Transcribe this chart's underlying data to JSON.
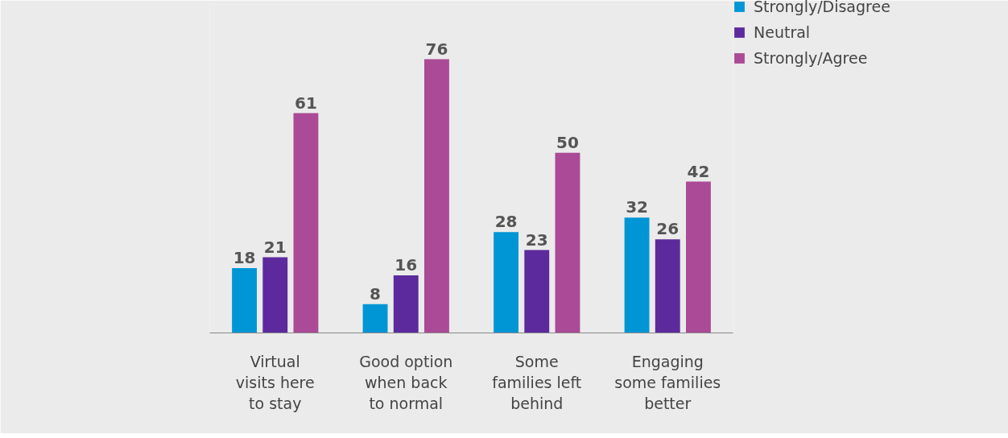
{
  "chart_data": {
    "type": "bar",
    "categories": [
      "Virtual\nvisits here\nto stay",
      "Good option\nwhen back\nto normal",
      "Some\nfamilies left\nbehind",
      "Engaging\nsome families\nbetter"
    ],
    "series": [
      {
        "name": "Strongly/Disagree",
        "color": "#0096d6",
        "values": [
          18,
          8,
          28,
          32
        ]
      },
      {
        "name": "Neutral",
        "color": "#5c2a9d",
        "values": [
          21,
          16,
          23,
          26
        ]
      },
      {
        "name": "Strongly/Agree",
        "color": "#ab4a96",
        "values": [
          61,
          76,
          50,
          42
        ]
      }
    ],
    "data_labels": true,
    "legend": "top right",
    "tick_labels": "x",
    "grid": false
  }
}
